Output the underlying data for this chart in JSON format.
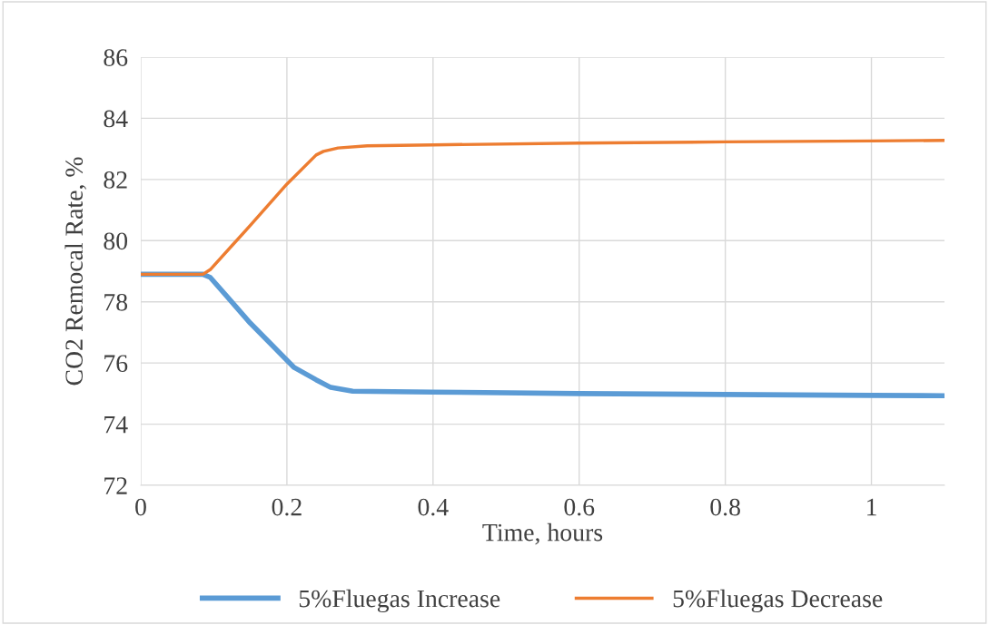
{
  "chart_data": {
    "type": "line",
    "xlabel": "Time, hours",
    "ylabel": "CO2 Remocal Rate, %",
    "xlim": [
      0,
      1.1
    ],
    "xticks": [
      0,
      0.2,
      0.4,
      0.6,
      0.8,
      1
    ],
    "ylim": [
      72,
      86
    ],
    "yticks": [
      72,
      74,
      76,
      78,
      80,
      82,
      84,
      86
    ],
    "grid": true,
    "legend": "bottom",
    "marker": "none",
    "line_style": "solid",
    "series": [
      {
        "name": "5%Fluegas Increase",
        "color": "#5b9bd5",
        "x": [
          0,
          0.05,
          0.085,
          0.095,
          0.15,
          0.21,
          0.24,
          0.26,
          0.29,
          0.4,
          0.6,
          0.8,
          1.0,
          1.1
        ],
        "values": [
          78.9,
          78.9,
          78.9,
          78.8,
          77.3,
          75.85,
          75.45,
          75.2,
          75.08,
          75.05,
          75.0,
          74.97,
          74.94,
          74.93
        ]
      },
      {
        "name": "5%Fluegas Decrease",
        "color": "#ed7d31",
        "x": [
          0,
          0.05,
          0.085,
          0.095,
          0.15,
          0.2,
          0.24,
          0.25,
          0.27,
          0.31,
          0.4,
          0.6,
          0.8,
          1.0,
          1.1
        ],
        "values": [
          78.9,
          78.9,
          78.9,
          79.05,
          80.5,
          81.85,
          82.8,
          82.92,
          83.03,
          83.1,
          83.13,
          83.19,
          83.23,
          83.26,
          83.28
        ]
      }
    ]
  }
}
